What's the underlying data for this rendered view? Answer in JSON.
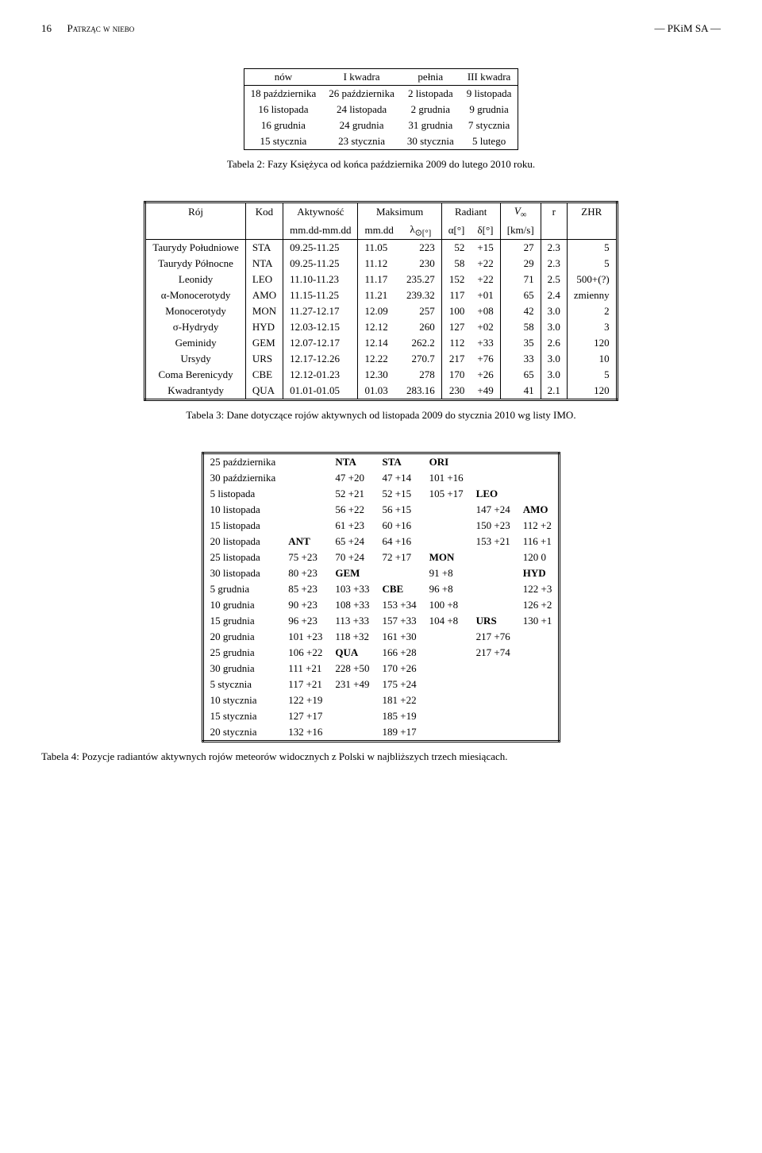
{
  "header": {
    "page_num": "16",
    "title_sc": "Patrząc w niebo",
    "right": "— PKiM SA —"
  },
  "table1": {
    "head": [
      "nów",
      "I kwadra",
      "pełnia",
      "III kwadra"
    ],
    "rows": [
      [
        "18 października",
        "26 października",
        "2 listopada",
        "9 listopada"
      ],
      [
        "16 listopada",
        "24 listopada",
        "2 grudnia",
        "9 grudnia"
      ],
      [
        "16 grudnia",
        "24 grudnia",
        "31 grudnia",
        "7 stycznia"
      ],
      [
        "15 stycznia",
        "23 stycznia",
        "30 stycznia",
        "5 lutego"
      ]
    ],
    "caption": "Tabela 2: Fazy Księżyca od końca października 2009 do lutego 2010 roku."
  },
  "table2": {
    "head1": {
      "roj": "Rój",
      "kod": "Kod",
      "akt": "Aktywność",
      "max": "Maksimum",
      "rad": "Radiant",
      "vinf": "V",
      "vinf_sub": "∞",
      "r": "r",
      "zhr": "ZHR"
    },
    "head2": {
      "akt": "mm.dd-mm.dd",
      "max1": "mm.dd",
      "max2": "λ",
      "max2_unit": "⊙[°]",
      "rad1": "α[°]",
      "rad2": "δ[°]",
      "vinf": "[km/s]"
    },
    "rows": [
      {
        "roj": "Taurydy Południowe",
        "kod": "STA",
        "akt": "09.25-11.25",
        "d": "11.05",
        "lam": "223",
        "a": "52",
        "de": "+15",
        "v": "27",
        "r": "2.3",
        "z": "5"
      },
      {
        "roj": "Taurydy Północne",
        "kod": "NTA",
        "akt": "09.25-11.25",
        "d": "11.12",
        "lam": "230",
        "a": "58",
        "de": "+22",
        "v": "29",
        "r": "2.3",
        "z": "5"
      },
      {
        "roj": "Leonidy",
        "kod": "LEO",
        "akt": "11.10-11.23",
        "d": "11.17",
        "lam": "235.27",
        "a": "152",
        "de": "+22",
        "v": "71",
        "r": "2.5",
        "z": "500+(?)"
      },
      {
        "roj": "α-Monocerotydy",
        "kod": "AMO",
        "akt": "11.15-11.25",
        "d": "11.21",
        "lam": "239.32",
        "a": "117",
        "de": "+01",
        "v": "65",
        "r": "2.4",
        "z": "zmienny"
      },
      {
        "roj": "Monocerotydy",
        "kod": "MON",
        "akt": "11.27-12.17",
        "d": "12.09",
        "lam": "257",
        "a": "100",
        "de": "+08",
        "v": "42",
        "r": "3.0",
        "z": "2"
      },
      {
        "roj": "σ-Hydrydy",
        "kod": "HYD",
        "akt": "12.03-12.15",
        "d": "12.12",
        "lam": "260",
        "a": "127",
        "de": "+02",
        "v": "58",
        "r": "3.0",
        "z": "3"
      },
      {
        "roj": "Geminidy",
        "kod": "GEM",
        "akt": "12.07-12.17",
        "d": "12.14",
        "lam": "262.2",
        "a": "112",
        "de": "+33",
        "v": "35",
        "r": "2.6",
        "z": "120"
      },
      {
        "roj": "Ursydy",
        "kod": "URS",
        "akt": "12.17-12.26",
        "d": "12.22",
        "lam": "270.7",
        "a": "217",
        "de": "+76",
        "v": "33",
        "r": "3.0",
        "z": "10"
      },
      {
        "roj": "Coma Berenicydy",
        "kod": "CBE",
        "akt": "12.12-01.23",
        "d": "12.30",
        "lam": "278",
        "a": "170",
        "de": "+26",
        "v": "65",
        "r": "3.0",
        "z": "5"
      },
      {
        "roj": "Kwadrantydy",
        "kod": "QUA",
        "akt": "01.01-01.05",
        "d": "01.03",
        "lam": "283.16",
        "a": "230",
        "de": "+49",
        "v": "41",
        "r": "2.1",
        "z": "120"
      }
    ],
    "caption": "Tabela 3: Dane dotyczące rojów aktywnych od listopada 2009 do stycznia 2010 wg listy IMO."
  },
  "table3": {
    "rows": [
      [
        "25 października",
        "",
        "NTA",
        "STA",
        "ORI",
        "",
        ""
      ],
      [
        "30 października",
        "",
        "47 +20",
        "47 +14",
        "101 +16",
        "",
        ""
      ],
      [
        "5 listopada",
        "",
        "52 +21",
        "52 +15",
        "105 +17",
        "LEO",
        ""
      ],
      [
        "10 listopada",
        "",
        "56 +22",
        "56 +15",
        "",
        "147 +24",
        "AMO"
      ],
      [
        "15 listopada",
        "",
        "61 +23",
        "60 +16",
        "",
        "150 +23",
        "112 +2"
      ],
      [
        "20 listopada",
        "ANT",
        "65 +24",
        "64 +16",
        "",
        "153 +21",
        "116 +1"
      ],
      [
        "25 listopada",
        "75 +23",
        "70 +24",
        "72 +17",
        "MON",
        "",
        "120 0"
      ],
      [
        "30 listopada",
        "80 +23",
        "GEM",
        "",
        "91 +8",
        "",
        "HYD"
      ],
      [
        "5 grudnia",
        "85 +23",
        "103 +33",
        "CBE",
        "96 +8",
        "",
        "122 +3"
      ],
      [
        "10 grudnia",
        "90 +23",
        "108 +33",
        "153 +34",
        "100 +8",
        "",
        "126 +2"
      ],
      [
        "15 grudnia",
        "96 +23",
        "113 +33",
        "157 +33",
        "104 +8",
        "URS",
        "130 +1"
      ],
      [
        "20 grudnia",
        "101 +23",
        "118 +32",
        "161 +30",
        "",
        "217 +76",
        ""
      ],
      [
        "25 grudnia",
        "106 +22",
        "QUA",
        "166 +28",
        "",
        "217 +74",
        ""
      ],
      [
        "30 grudnia",
        "111 +21",
        "228 +50",
        "170 +26",
        "",
        "",
        ""
      ],
      [
        "5 stycznia",
        "117 +21",
        "231 +49",
        "175 +24",
        "",
        "",
        ""
      ],
      [
        "10 stycznia",
        "122 +19",
        "",
        "181 +22",
        "",
        "",
        ""
      ],
      [
        "15 stycznia",
        "127 +17",
        "",
        "185 +19",
        "",
        "",
        ""
      ],
      [
        "20 stycznia",
        "132 +16",
        "",
        "189 +17",
        "",
        "",
        ""
      ]
    ],
    "bold_cells": [
      "0.2",
      "0.3",
      "0.4",
      "2.5",
      "3.6",
      "5.1",
      "6.4",
      "7.2",
      "7.6",
      "8.3",
      "10.5",
      "12.2"
    ],
    "caption": "Tabela 4: Pozycje radiantów aktywnych rojów meteorów widocznych z Polski w najbliższych trzech miesiącach."
  }
}
